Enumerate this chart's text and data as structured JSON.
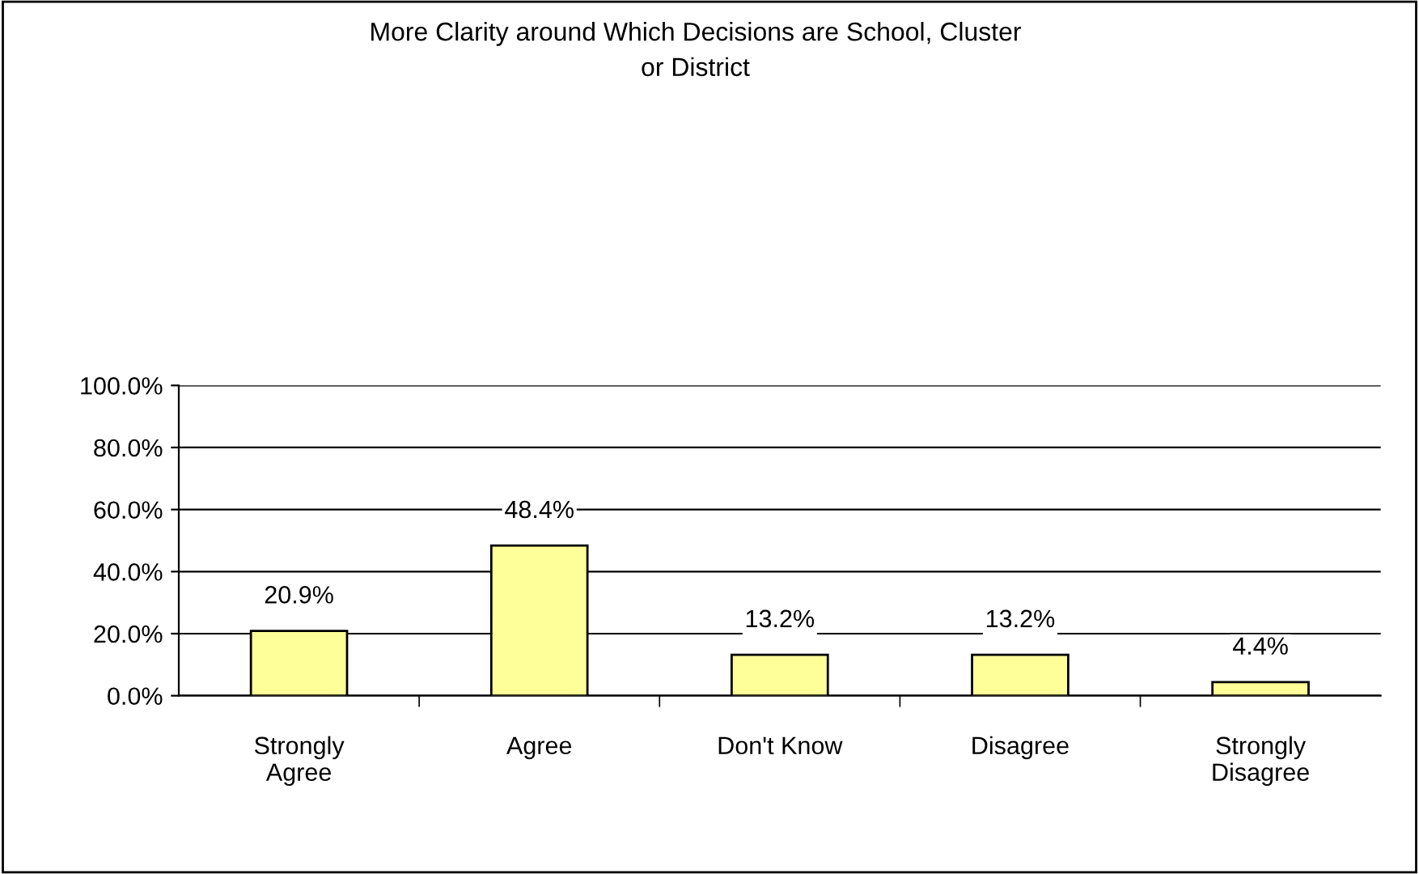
{
  "chart_data": {
    "type": "bar",
    "title": "More Clarity around Which Decisions are School, Cluster\nor District",
    "categories": [
      "Strongly\nAgree",
      "Agree",
      "Don't Know",
      "Disagree",
      "Strongly\nDisagree"
    ],
    "values": [
      20.9,
      48.4,
      13.2,
      13.2,
      4.4
    ],
    "value_labels": [
      "20.9%",
      "48.4%",
      "13.2%",
      "13.2%",
      "4.4%"
    ],
    "color": "#ffff99",
    "ylim": [
      0,
      100
    ],
    "yticks": [
      {
        "value": 0,
        "label": "0.0%"
      },
      {
        "value": 20,
        "label": "20.0%"
      },
      {
        "value": 40,
        "label": "40.0%"
      },
      {
        "value": 60,
        "label": "60.0%"
      },
      {
        "value": 80,
        "label": "80.0%"
      },
      {
        "value": 100,
        "label": "100.0%"
      }
    ],
    "grid": "y",
    "legend": false
  }
}
